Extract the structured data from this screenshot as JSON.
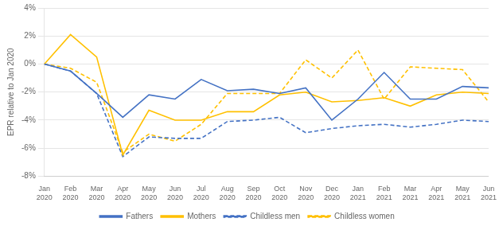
{
  "chart_data": {
    "type": "line",
    "categories": [
      "Jan\n2020",
      "Feb\n2020",
      "Mar\n2020",
      "Apr\n2020",
      "May\n2020",
      "Jun\n2020",
      "Jul\n2020",
      "Aug\n2020",
      "Sep\n2020",
      "Oct\n2020",
      "Nov\n2020",
      "Dec\n2020",
      "Jan\n2021",
      "Feb\n2021",
      "Mar\n2021",
      "Apr\n2021",
      "May\n2021",
      "Jun\n2021"
    ],
    "series": [
      {
        "name": "Fathers",
        "color": "#4472C4",
        "line_style": "solid",
        "values": [
          0.0,
          -0.5,
          -2.1,
          -3.8,
          -2.2,
          -2.5,
          -1.1,
          -1.9,
          -1.8,
          -2.1,
          -1.7,
          -4.0,
          -2.5,
          -0.6,
          -2.5,
          -2.5,
          -1.6,
          -1.7
        ]
      },
      {
        "name": "Mothers",
        "color": "#FFC000",
        "line_style": "solid",
        "values": [
          0.0,
          2.1,
          0.5,
          -6.5,
          -3.3,
          -4.0,
          -4.0,
          -3.4,
          -3.4,
          -2.2,
          -2.0,
          -2.7,
          -2.6,
          -2.4,
          -3.0,
          -2.2,
          -2.0,
          -2.1
        ]
      },
      {
        "name": "Childless men",
        "color": "#4472C4",
        "line_style": "dashed",
        "values": [
          0.0,
          -0.5,
          -2.1,
          -6.6,
          -5.2,
          -5.3,
          -5.3,
          -4.1,
          -4.0,
          -3.8,
          -4.9,
          -4.6,
          -4.4,
          -4.3,
          -4.5,
          -4.3,
          -4.0,
          -4.1
        ]
      },
      {
        "name": "Childless women",
        "color": "#FFC000",
        "line_style": "dashed",
        "values": [
          0.0,
          -0.3,
          -1.3,
          -6.3,
          -5.0,
          -5.5,
          -4.3,
          -2.1,
          -2.1,
          -2.1,
          0.3,
          -1.0,
          1.0,
          -2.5,
          -0.2,
          -0.3,
          -0.4,
          -2.7
        ]
      }
    ],
    "y_label": "EPR relative to Jan 2020",
    "ylim": [
      -8,
      4
    ],
    "yticks": [
      {
        "value": -8,
        "label": "-8%"
      },
      {
        "value": -6,
        "label": "-6%"
      },
      {
        "value": -4,
        "label": "-4%"
      },
      {
        "value": -2,
        "label": "-2%"
      },
      {
        "value": 0,
        "label": "0%"
      },
      {
        "value": 2,
        "label": "2%"
      },
      {
        "value": 4,
        "label": "4%"
      }
    ],
    "grid": true,
    "legend": "bottom"
  }
}
